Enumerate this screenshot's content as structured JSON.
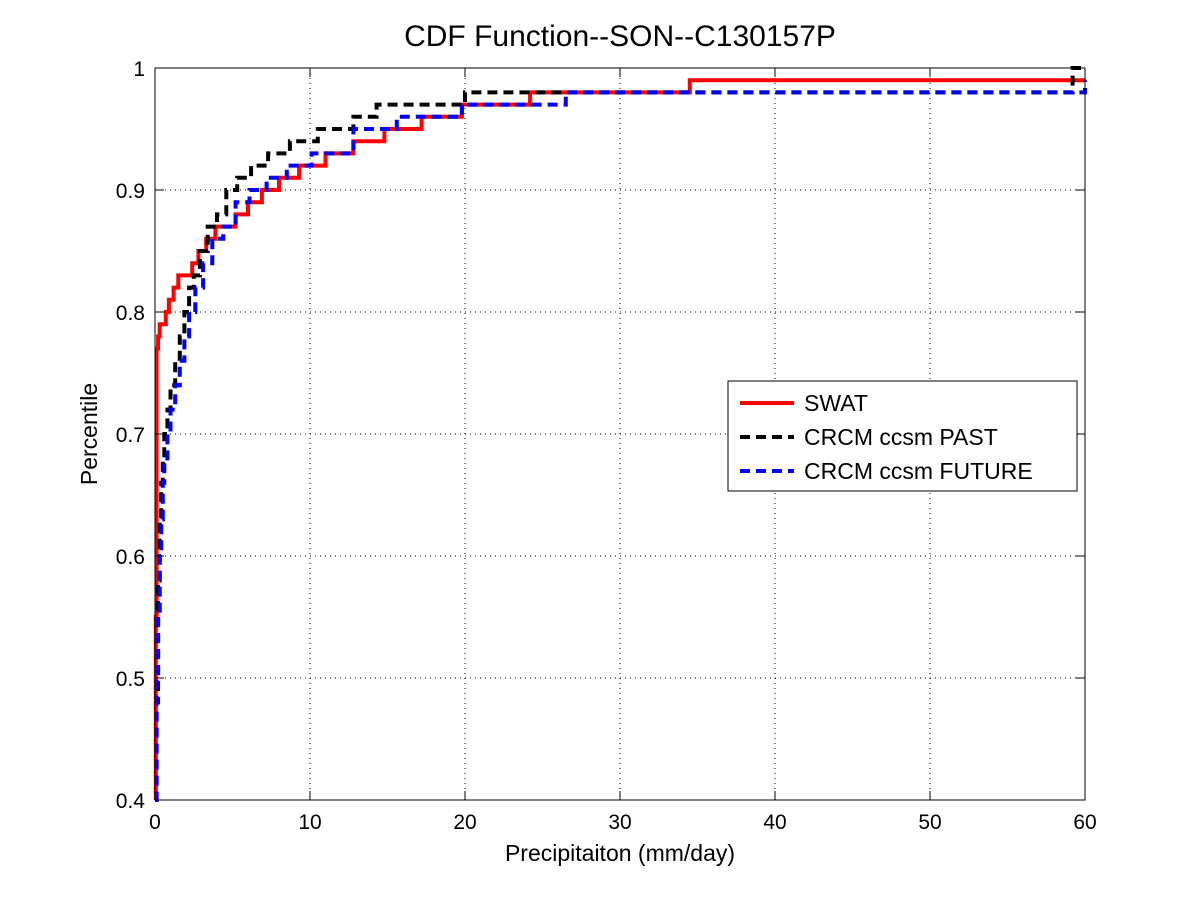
{
  "chart_data": {
    "type": "line",
    "title": "CDF Function--SON--C130157P",
    "xlabel": "Precipitaiton (mm/day)",
    "ylabel": "Percentile",
    "xlim": [
      0,
      60
    ],
    "ylim": [
      0.4,
      1
    ],
    "x_ticks": [
      "0",
      "10",
      "20",
      "30",
      "40",
      "50",
      "60"
    ],
    "y_ticks": [
      "0.4",
      "0.5",
      "0.6",
      "0.7",
      "0.8",
      "0.9",
      "1"
    ],
    "grid": "dotted",
    "legend_position": "right",
    "series": [
      {
        "name": "SWAT",
        "color": "#ff0000",
        "style": "solid",
        "x": [
          0,
          0.05,
          0.1,
          0.2,
          0.3,
          0.5,
          0.7,
          0.9,
          1.2,
          1.5,
          1.8,
          2.4,
          2.8,
          3.3,
          3.9,
          4.5,
          5.2,
          6.0,
          6.9,
          8.0,
          9.3,
          11.0,
          12.8,
          14.8,
          17.2,
          19.8,
          24.2,
          34.5,
          59.3,
          59.3,
          60
        ],
        "y": [
          0.4,
          0.55,
          0.77,
          0.78,
          0.79,
          0.79,
          0.8,
          0.81,
          0.82,
          0.83,
          0.83,
          0.84,
          0.85,
          0.86,
          0.87,
          0.87,
          0.88,
          0.89,
          0.9,
          0.91,
          0.92,
          0.93,
          0.94,
          0.95,
          0.96,
          0.97,
          0.98,
          0.99,
          0.99,
          0.99,
          0.99
        ]
      },
      {
        "name": "CRCM ccsm PAST",
        "color": "#000000",
        "style": "dashed",
        "x": [
          0,
          0.1,
          0.2,
          0.3,
          0.4,
          0.5,
          0.6,
          0.8,
          1.0,
          1.3,
          1.6,
          1.9,
          2.2,
          2.5,
          2.9,
          3.4,
          4.0,
          4.6,
          5.3,
          6.2,
          7.3,
          8.7,
          10.5,
          12.8,
          14.3,
          20.0,
          59.2,
          59.2,
          60
        ],
        "y": [
          0.4,
          0.48,
          0.58,
          0.63,
          0.66,
          0.68,
          0.7,
          0.72,
          0.74,
          0.76,
          0.78,
          0.8,
          0.82,
          0.83,
          0.85,
          0.87,
          0.88,
          0.9,
          0.91,
          0.92,
          0.93,
          0.94,
          0.95,
          0.96,
          0.97,
          0.98,
          0.99,
          1.0,
          1.0
        ]
      },
      {
        "name": "CRCM ccsm FUTURE",
        "color": "#0000ff",
        "style": "dashed",
        "x": [
          0,
          0.1,
          0.2,
          0.3,
          0.4,
          0.5,
          0.6,
          0.8,
          1.0,
          1.3,
          1.6,
          1.9,
          2.2,
          2.6,
          3.1,
          3.7,
          4.4,
          5.2,
          6.1,
          7.2,
          8.5,
          10.1,
          12.8,
          15.6,
          19.8,
          26.5,
          60
        ],
        "y": [
          0.4,
          0.5,
          0.55,
          0.6,
          0.63,
          0.66,
          0.68,
          0.7,
          0.72,
          0.74,
          0.76,
          0.78,
          0.8,
          0.82,
          0.84,
          0.86,
          0.87,
          0.89,
          0.9,
          0.91,
          0.92,
          0.93,
          0.95,
          0.96,
          0.97,
          0.98,
          0.99
        ]
      }
    ]
  }
}
